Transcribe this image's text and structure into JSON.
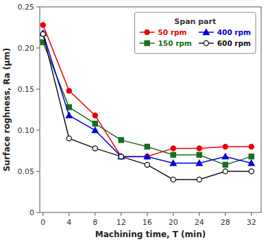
{
  "chart_data": {
    "type": "line",
    "title": "Span part",
    "xlabel": "Machining time, T (min)",
    "ylabel": "Surface roghness, Ra (μm)",
    "x": [
      0,
      4,
      8,
      12,
      16,
      20,
      24,
      28,
      32
    ],
    "series": [
      {
        "name": "50 rpm",
        "color": "#ee0000",
        "marker": "circle",
        "values": [
          0.228,
          0.148,
          0.118,
          0.068,
          0.068,
          0.078,
          0.078,
          0.08,
          0.08
        ]
      },
      {
        "name": "150 rpm",
        "color": "#1a6e1a",
        "marker": "square",
        "values": [
          0.207,
          0.128,
          0.108,
          0.088,
          0.08,
          0.07,
          0.07,
          0.058,
          0.068
        ]
      },
      {
        "name": "400 rpm",
        "color": "#0000dd",
        "marker": "triangle",
        "values": [
          0.218,
          0.118,
          0.1,
          0.068,
          0.068,
          0.06,
          0.06,
          0.068,
          0.06
        ]
      },
      {
        "name": "600 rpm",
        "color": "#111111",
        "marker": "open-circle",
        "values": [
          0.217,
          0.09,
          0.078,
          0.068,
          0.058,
          0.04,
          0.04,
          0.05,
          0.05
        ]
      }
    ],
    "xlim": [
      -0.5,
      33.5
    ],
    "ylim": [
      0,
      0.25
    ],
    "xticks": [
      0,
      4,
      8,
      12,
      16,
      20,
      24,
      28,
      32
    ],
    "yticks": [
      0,
      0.05,
      {
        "value": 0.1,
        "label": "0.10"
      },
      0.15,
      {
        "value": 0.2,
        "label": "0.20"
      },
      0.25
    ],
    "grid": false,
    "legend": "upper-right"
  }
}
